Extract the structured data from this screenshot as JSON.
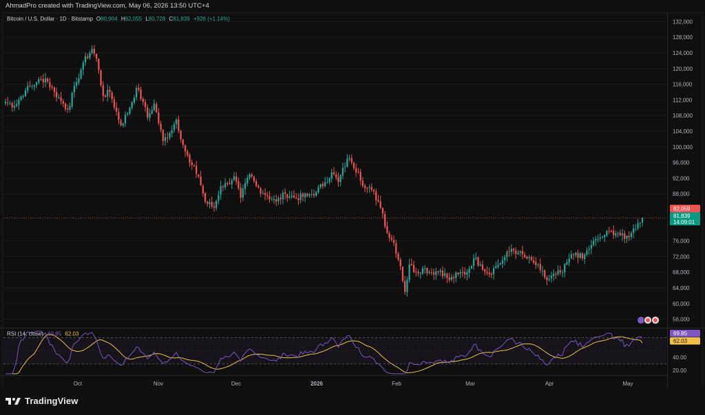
{
  "header": {
    "author_line": "AhmadPro created with TradingView.com, May 06, 2026 13:50 UTC+4"
  },
  "legend": {
    "symbol": "Bitcoin / U.S. Dollar · 1D · Bitstamp",
    "o_label": "O",
    "o_value": "80,904",
    "h_label": "H",
    "h_value": "82,055",
    "l_label": "L",
    "l_value": "80,728",
    "c_label": "C",
    "c_value": "81,839",
    "change": "+926 (+1.14%)"
  },
  "price_axis": {
    "ticks": [
      "132,000",
      "128,000",
      "124,000",
      "120,000",
      "116,000",
      "112,000",
      "108,000",
      "104,000",
      "100,000",
      "96,000",
      "92,000",
      "88,000",
      "76,000",
      "72,000",
      "68,000",
      "64,000",
      "60,000",
      "56,000"
    ],
    "label_high": "82,059",
    "label_last": "81,839",
    "label_countdown": "14:09:01"
  },
  "rsi": {
    "legend": "RSI (14, close)",
    "value_rsi": "69.85",
    "value_ma": "62.03",
    "axis_ticks": [
      "40.00",
      "20.00"
    ],
    "label_rsi": "69.85",
    "label_ma": "62.03"
  },
  "time_axis": {
    "ticks": [
      "Oct",
      "Nov",
      "Dec",
      "2026",
      "Feb",
      "Mar",
      "Apr",
      "May"
    ]
  },
  "brand": {
    "name": "TradingView"
  },
  "colors": {
    "up": "#26a69a",
    "down": "#ef5350",
    "rsi": "#7e57c2",
    "rsi_ma": "#f0c048",
    "bg": "#0f0f0f",
    "grid": "#1c1c1c"
  },
  "chart_data": {
    "type": "candlestick",
    "symbol": "BTCUSD",
    "interval": "1D",
    "price_ylim": [
      54000,
      134000
    ],
    "price_ticks": [
      56000,
      60000,
      64000,
      68000,
      72000,
      76000,
      88000,
      92000,
      96000,
      100000,
      104000,
      108000,
      112000,
      116000,
      120000,
      124000,
      128000,
      132000
    ],
    "close_anchors": [
      {
        "t": 0,
        "close": 111500
      },
      {
        "t": 4,
        "close": 110500
      },
      {
        "t": 9,
        "close": 114500
      },
      {
        "t": 14,
        "close": 116500
      },
      {
        "t": 18,
        "close": 117500
      },
      {
        "t": 22,
        "close": 114000
      },
      {
        "t": 26,
        "close": 111000
      },
      {
        "t": 28,
        "close": 109500
      },
      {
        "t": 32,
        "close": 116500
      },
      {
        "t": 35,
        "close": 121500
      },
      {
        "t": 39,
        "close": 125000
      },
      {
        "t": 41,
        "close": 122500
      },
      {
        "t": 44,
        "close": 113000
      },
      {
        "t": 47,
        "close": 114000
      },
      {
        "t": 52,
        "close": 105500
      },
      {
        "t": 56,
        "close": 110000
      },
      {
        "t": 59,
        "close": 115000
      },
      {
        "t": 62,
        "close": 111500
      },
      {
        "t": 64,
        "close": 107500
      },
      {
        "t": 67,
        "close": 111000
      },
      {
        "t": 71,
        "close": 101500
      },
      {
        "t": 74,
        "close": 103500
      },
      {
        "t": 77,
        "close": 107000
      },
      {
        "t": 80,
        "close": 100500
      },
      {
        "t": 83,
        "close": 96000
      },
      {
        "t": 87,
        "close": 92500
      },
      {
        "t": 90,
        "close": 86000
      },
      {
        "t": 94,
        "close": 84500
      },
      {
        "t": 97,
        "close": 90000
      },
      {
        "t": 100,
        "close": 90500
      },
      {
        "t": 103,
        "close": 92500
      },
      {
        "t": 106,
        "close": 87000
      },
      {
        "t": 110,
        "close": 93000
      },
      {
        "t": 113,
        "close": 90000
      },
      {
        "t": 118,
        "close": 87500
      },
      {
        "t": 122,
        "close": 86000
      },
      {
        "t": 126,
        "close": 88000
      },
      {
        "t": 131,
        "close": 87000
      },
      {
        "t": 136,
        "close": 87500
      },
      {
        "t": 140,
        "close": 88500
      },
      {
        "t": 144,
        "close": 91000
      },
      {
        "t": 147,
        "close": 93500
      },
      {
        "t": 150,
        "close": 91000
      },
      {
        "t": 154,
        "close": 97000
      },
      {
        "t": 156,
        "close": 96000
      },
      {
        "t": 159,
        "close": 93500
      },
      {
        "t": 162,
        "close": 89500
      },
      {
        "t": 165,
        "close": 89000
      },
      {
        "t": 168,
        "close": 86000
      },
      {
        "t": 170,
        "close": 83000
      },
      {
        "t": 172,
        "close": 78000
      },
      {
        "t": 175,
        "close": 75500
      },
      {
        "t": 178,
        "close": 69500
      },
      {
        "t": 180,
        "close": 63000
      },
      {
        "t": 182,
        "close": 70000
      },
      {
        "t": 185,
        "close": 68000
      },
      {
        "t": 188,
        "close": 69000
      },
      {
        "t": 192,
        "close": 68000
      },
      {
        "t": 196,
        "close": 68500
      },
      {
        "t": 200,
        "close": 66000
      },
      {
        "t": 204,
        "close": 67500
      },
      {
        "t": 208,
        "close": 68000
      },
      {
        "t": 211,
        "close": 71500
      },
      {
        "t": 214,
        "close": 70000
      },
      {
        "t": 218,
        "close": 67500
      },
      {
        "t": 221,
        "close": 69500
      },
      {
        "t": 224,
        "close": 71000
      },
      {
        "t": 228,
        "close": 74000
      },
      {
        "t": 231,
        "close": 73000
      },
      {
        "t": 235,
        "close": 71500
      },
      {
        "t": 238,
        "close": 70500
      },
      {
        "t": 241,
        "close": 68500
      },
      {
        "t": 244,
        "close": 66000
      },
      {
        "t": 248,
        "close": 67500
      },
      {
        "t": 251,
        "close": 68000
      },
      {
        "t": 254,
        "close": 71500
      },
      {
        "t": 257,
        "close": 73000
      },
      {
        "t": 260,
        "close": 71500
      },
      {
        "t": 264,
        "close": 75000
      },
      {
        "t": 267,
        "close": 76500
      },
      {
        "t": 270,
        "close": 77500
      },
      {
        "t": 273,
        "close": 78500
      },
      {
        "t": 276,
        "close": 78000
      },
      {
        "t": 279,
        "close": 76500
      },
      {
        "t": 282,
        "close": 78000
      },
      {
        "t": 285,
        "close": 80500
      },
      {
        "t": 287,
        "close": 81839
      }
    ],
    "last_close": 81839,
    "rsi_ylim": [
      15,
      80
    ],
    "rsi_bands": [
      30,
      70
    ],
    "rsi_last": 69.85,
    "rsi_ma_last": 62.03,
    "time_labels": [
      "Oct",
      "Nov",
      "Dec",
      "2026",
      "Feb",
      "Mar",
      "Apr",
      "May"
    ]
  }
}
